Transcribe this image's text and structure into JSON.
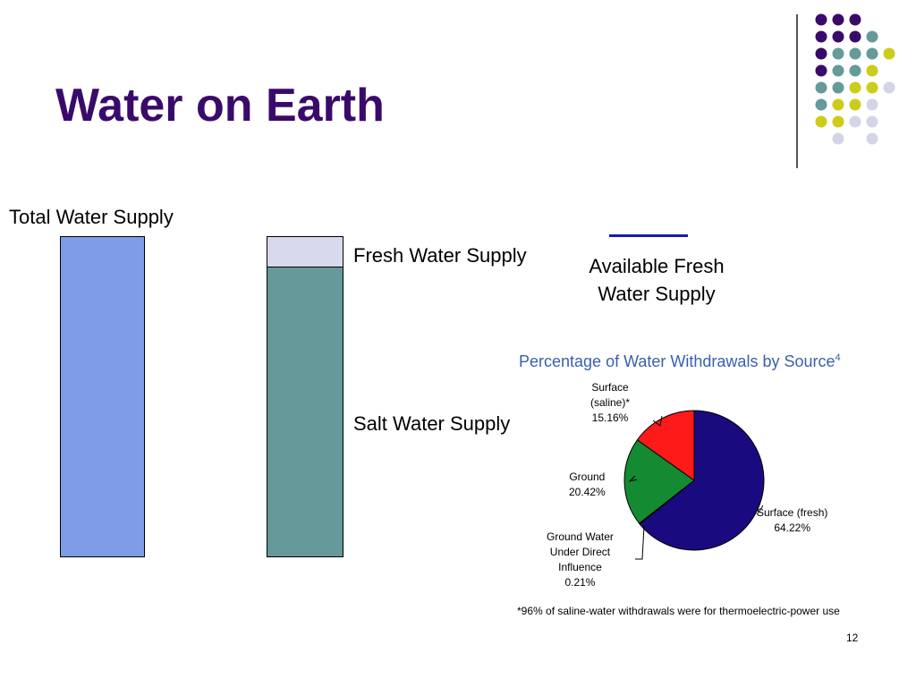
{
  "slide": {
    "title": "Water on Earth",
    "page_number": "12"
  },
  "bars": {
    "total_label": "Total Water Supply",
    "fresh_label": "Fresh Water Supply",
    "salt_label": "Salt Water Supply",
    "available_label_line1": "Available Fresh",
    "available_label_line2": "Water Supply"
  },
  "colors": {
    "title": "#3a0a6b",
    "total_bar": "#7f9de6",
    "fresh_bar": "#d9d9ee",
    "salt_bar": "#669999",
    "available_line": "#1a1aaa",
    "surface_fresh": "#1a0a80",
    "surface_saline": "#ff1a1a",
    "ground": "#148a32",
    "ground_direct": "#ffffff",
    "dot_purple": "#3a0a6b",
    "dot_teal": "#669999",
    "dot_yellow": "#cccc1a",
    "dot_lavender": "#d4d4e8"
  },
  "chart_data": {
    "type": "pie",
    "title": "Percentage of Water Withdrawals by Source",
    "title_superscript": "4",
    "slices": [
      {
        "name": "Surface (fresh)",
        "value": 64.22,
        "label_line1": "Surface (fresh)",
        "label_value": "64.22%"
      },
      {
        "name": "Ground Water Under Direct Influence",
        "value": 0.21,
        "label_line1": "Ground Water",
        "label_line2": "Under Direct",
        "label_line3": "Influence",
        "label_value": "0.21%"
      },
      {
        "name": "Ground",
        "value": 20.42,
        "label_line1": "Ground",
        "label_value": "20.42%"
      },
      {
        "name": "Surface (saline)*",
        "value": 15.16,
        "label_line1": "Surface",
        "label_line2": "(saline)*",
        "label_value": "15.16%"
      }
    ],
    "footnote": "*96% of saline-water withdrawals were for thermoelectric-power use"
  }
}
